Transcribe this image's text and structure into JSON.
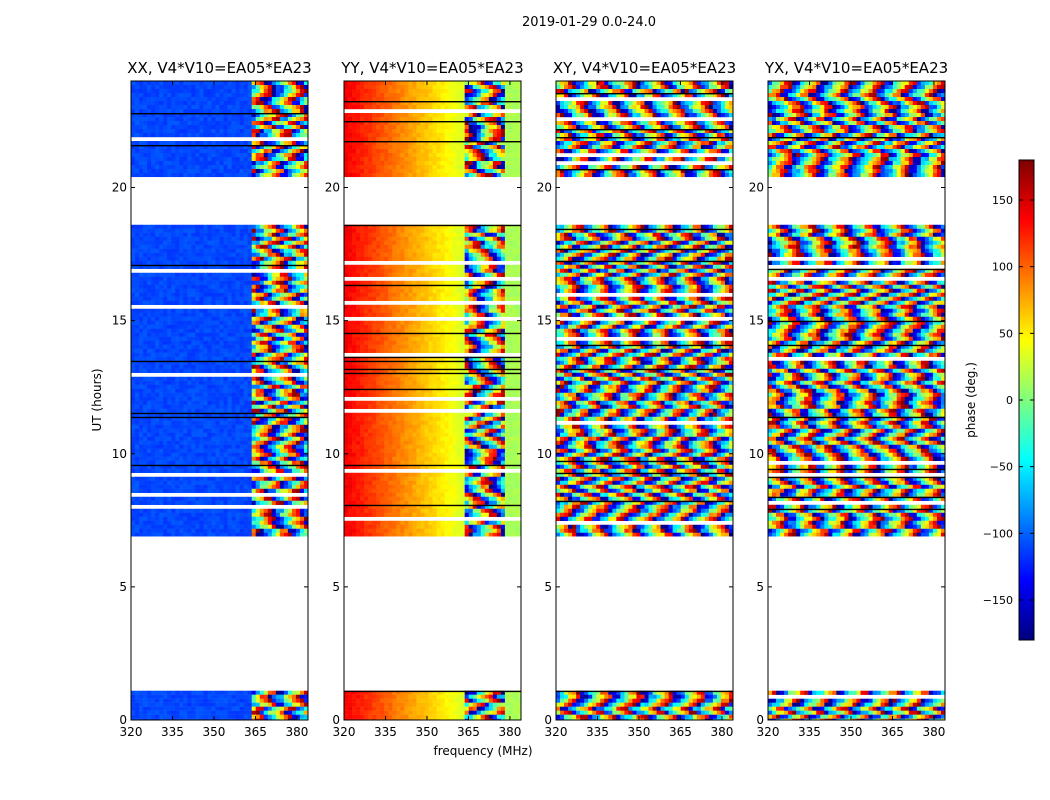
{
  "figure_title": "2019-01-29 0.0-24.0",
  "chart_data": {
    "type": "heatmap",
    "title": "2019-01-29 0.0-24.0",
    "xlabel": "frequency (MHz)",
    "ylabel": "UT (hours)",
    "xlim": [
      320,
      384
    ],
    "ylim": [
      0,
      24
    ],
    "x_ticks": [
      320,
      335,
      350,
      365,
      380
    ],
    "y_ticks": [
      0,
      5,
      10,
      15,
      20
    ],
    "grid": false,
    "panels": [
      {
        "title": "XX, V4*V10=EA05*EA23",
        "dominant_phase_deg": -110,
        "character": "smooth low-frequency band, fringing above 363 MHz"
      },
      {
        "title": "YY, V4*V10=EA05*EA23",
        "dominant_phase_deg": 90,
        "character": "smooth phase ramp with frequency, fringing 363-378 MHz"
      },
      {
        "title": "XY, V4*V10=EA05*EA23",
        "dominant_phase_deg": null,
        "character": "noise-like fringing across full band"
      },
      {
        "title": "YX, V4*V10=EA05*EA23",
        "dominant_phase_deg": null,
        "character": "noise-like fringing across full band"
      }
    ],
    "data_blocks_ut": [
      [
        0.0,
        1.1
      ],
      [
        6.9,
        18.6
      ],
      [
        20.4,
        24.0
      ]
    ],
    "colorbar": {
      "label": "phase (deg.)",
      "range": [
        -180,
        180
      ],
      "ticks": [
        -150,
        -100,
        -50,
        0,
        50,
        100,
        150
      ],
      "tick_labels": [
        "−150",
        "−100",
        "−50",
        "0",
        "50",
        "100",
        "150"
      ],
      "colormap": "jet",
      "colors": [
        "#00007f",
        "#0000ff",
        "#007fff",
        "#00ffff",
        "#7fff7f",
        "#ffff00",
        "#ff7f00",
        "#ff0000",
        "#7f0000"
      ]
    }
  }
}
